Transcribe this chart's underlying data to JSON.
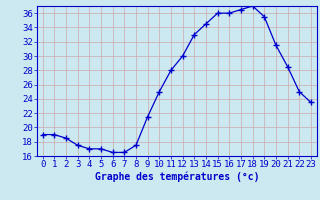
{
  "hours": [
    0,
    1,
    2,
    3,
    4,
    5,
    6,
    7,
    8,
    9,
    10,
    11,
    12,
    13,
    14,
    15,
    16,
    17,
    18,
    19,
    20,
    21,
    22,
    23
  ],
  "temps": [
    19.0,
    19.0,
    18.5,
    17.5,
    17.0,
    17.0,
    16.5,
    16.5,
    17.5,
    21.5,
    25.0,
    28.0,
    30.0,
    33.0,
    34.5,
    36.0,
    36.0,
    36.5,
    37.0,
    35.5,
    31.5,
    28.5,
    25.0,
    23.5
  ],
  "line_color": "#0000cc",
  "marker": "+",
  "marker_size": 4,
  "bg_color": "#cce8f0",
  "grid_color": "#ccaaaa",
  "xlabel": "Graphe des températures (°c)",
  "ylim": [
    16,
    37
  ],
  "yticks": [
    16,
    18,
    20,
    22,
    24,
    26,
    28,
    30,
    32,
    34,
    36
  ],
  "xticks": [
    0,
    1,
    2,
    3,
    4,
    5,
    6,
    7,
    8,
    9,
    10,
    11,
    12,
    13,
    14,
    15,
    16,
    17,
    18,
    19,
    20,
    21,
    22,
    23
  ],
  "xlabel_fontsize": 7,
  "tick_fontsize": 6.5,
  "tick_color": "#0000cc",
  "axis_color": "#0000cc"
}
